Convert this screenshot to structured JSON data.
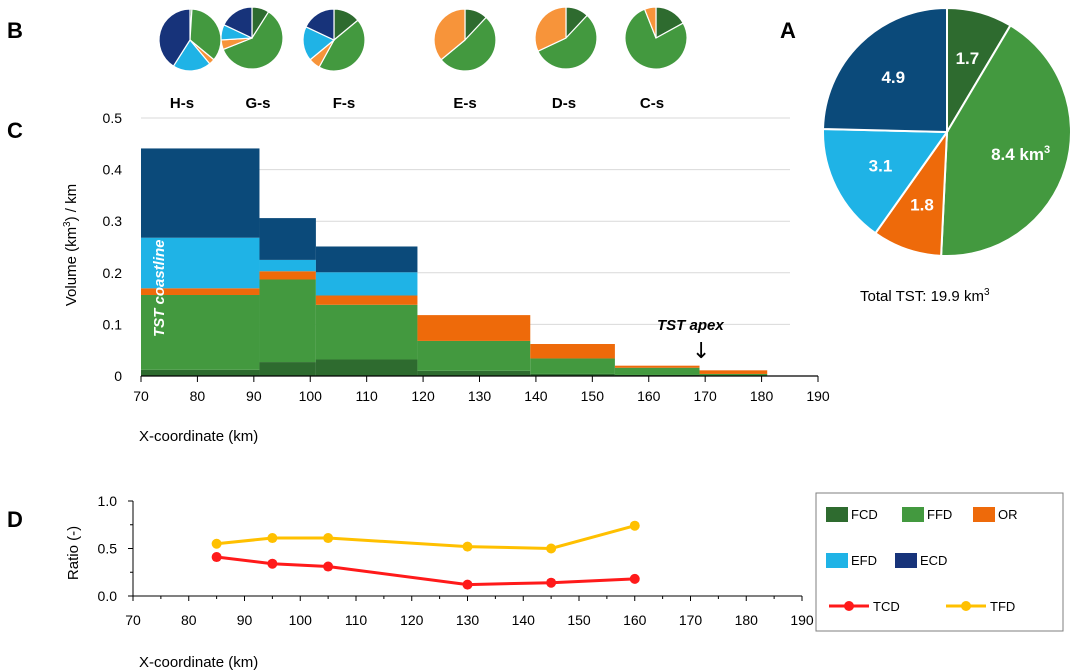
{
  "colors": {
    "FCD": "#2e6b2f",
    "FFD": "#43993f",
    "OR": "#ee6a0a",
    "EFD": "#1fb3e6",
    "ECD": "#0b4a7a",
    "TCD": "#ff1a1a",
    "TFD": "#ffc000",
    "OR_light": "#f7943a",
    "ECD_navy": "#17337a"
  },
  "panel_letters": {
    "a": "A",
    "b": "B",
    "c": "C",
    "d": "D"
  },
  "panel_a": {
    "total_label": "Total TST: 19.9 km",
    "total_sup": "3",
    "labels": {
      "FCD": "1.7",
      "FFD": "8.4 km",
      "FFD_sup": "3",
      "OR": "1.8",
      "EFD": "3.1",
      "ECD": "4.9"
    }
  },
  "panel_c": {
    "ylabel": "Volume (km",
    "ylabel_sup": "3",
    "ylabel_tail": ") / km",
    "xlabel": "X-coordinate (km)",
    "annotation_coastline": "TST coastline",
    "annotation_apex": "TST apex",
    "arrow": "↓"
  },
  "panel_d": {
    "ylabel": "Ratio (-)",
    "xlabel": "X-coordinate (km)"
  },
  "legend": [
    {
      "key": "FCD",
      "label": "FCD",
      "kind": "box",
      "color": "#2e6b2f"
    },
    {
      "key": "FFD",
      "label": "FFD",
      "kind": "box",
      "color": "#43993f"
    },
    {
      "key": "OR",
      "label": "OR",
      "kind": "box",
      "color": "#ee6a0a"
    },
    {
      "key": "EFD",
      "label": "EFD",
      "kind": "box",
      "color": "#1fb3e6"
    },
    {
      "key": "ECD",
      "label": "ECD",
      "kind": "box",
      "color": "#17337a"
    },
    {
      "key": "TCD",
      "label": "TCD",
      "kind": "line",
      "color": "#ff1a1a"
    },
    {
      "key": "TFD",
      "label": "TFD",
      "kind": "line",
      "color": "#ffc000"
    }
  ],
  "chart_data": [
    {
      "panel": "A",
      "type": "pie",
      "title": "",
      "categories": [
        "FCD",
        "FFD",
        "OR",
        "EFD",
        "ECD"
      ],
      "values": [
        1.7,
        8.4,
        1.8,
        3.1,
        4.9
      ],
      "units": "km3",
      "total": 19.9
    },
    {
      "panel": "B",
      "type": "pie",
      "categories": [
        "FCD",
        "FFD",
        "OR",
        "EFD",
        "ECD"
      ],
      "pies": [
        {
          "name": "H-s",
          "values": [
            0.01,
            0.35,
            0.03,
            0.2,
            0.41
          ]
        },
        {
          "name": "G-s",
          "values": [
            0.09,
            0.6,
            0.05,
            0.08,
            0.18
          ]
        },
        {
          "name": "F-s",
          "values": [
            0.14,
            0.44,
            0.06,
            0.18,
            0.18
          ]
        },
        {
          "name": "E-s",
          "values": [
            0.12,
            0.52,
            0.36,
            0,
            0
          ]
        },
        {
          "name": "D-s",
          "values": [
            0.12,
            0.56,
            0.32,
            0,
            0
          ]
        },
        {
          "name": "C-s",
          "values": [
            0.17,
            0.77,
            0.06,
            0,
            0
          ]
        }
      ]
    },
    {
      "panel": "C",
      "type": "bar",
      "stacked": true,
      "xlim": [
        70,
        190
      ],
      "ylim": [
        0,
        0.5
      ],
      "xticks": [
        70,
        80,
        90,
        100,
        110,
        120,
        130,
        140,
        150,
        160,
        170,
        180,
        190
      ],
      "yticks": [
        "0",
        "0.1",
        "0.2",
        "0.3",
        "0.4",
        "0.5"
      ],
      "xlabel": "X-coordinate (km)",
      "ylabel": "Volume (km3) / km",
      "bins": [
        {
          "x0": 70,
          "x1": 91,
          "FCD": 0.012,
          "FFD": 0.145,
          "OR": 0.013,
          "EFD": 0.098,
          "ECD": 0.173
        },
        {
          "x0": 91,
          "x1": 101,
          "FCD": 0.027,
          "FFD": 0.16,
          "OR": 0.016,
          "EFD": 0.022,
          "ECD": 0.081
        },
        {
          "x0": 101,
          "x1": 119,
          "FCD": 0.032,
          "FFD": 0.106,
          "OR": 0.018,
          "EFD": 0.045,
          "ECD": 0.05
        },
        {
          "x0": 119,
          "x1": 139,
          "FCD": 0.01,
          "FFD": 0.058,
          "OR": 0.05,
          "EFD": 0,
          "ECD": 0
        },
        {
          "x0": 139,
          "x1": 154,
          "FCD": 0.004,
          "FFD": 0.03,
          "OR": 0.028,
          "EFD": 0,
          "ECD": 0
        },
        {
          "x0": 154,
          "x1": 169,
          "FCD": 0.002,
          "FFD": 0.014,
          "OR": 0.004,
          "EFD": 0,
          "ECD": 0
        },
        {
          "x0": 169,
          "x1": 181,
          "FCD": 0.0005,
          "FFD": 0.0035,
          "OR": 0.007,
          "EFD": 0,
          "ECD": 0
        }
      ]
    },
    {
      "panel": "D",
      "type": "line",
      "xlim": [
        70,
        190
      ],
      "ylim": [
        0,
        1
      ],
      "xticks": [
        70,
        80,
        90,
        100,
        110,
        120,
        130,
        140,
        150,
        160,
        170,
        180,
        190
      ],
      "yticks": [
        "0.0",
        "0.5",
        "1.0"
      ],
      "xlabel": "X-coordinate (km)",
      "ylabel": "Ratio (-)",
      "series": [
        {
          "name": "TCD",
          "x": [
            85,
            95,
            105,
            130,
            145,
            160
          ],
          "y": [
            0.41,
            0.34,
            0.31,
            0.12,
            0.14,
            0.18
          ]
        },
        {
          "name": "TFD",
          "x": [
            85,
            95,
            105,
            130,
            145,
            160
          ],
          "y": [
            0.55,
            0.61,
            0.61,
            0.52,
            0.5,
            0.74
          ]
        }
      ]
    }
  ]
}
